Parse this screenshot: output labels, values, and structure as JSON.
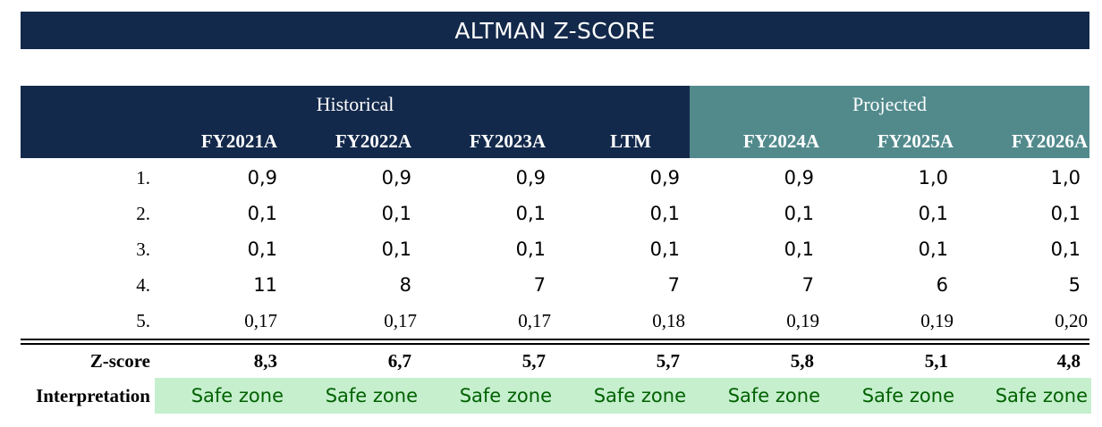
{
  "title": "ALTMAN Z-SCORE",
  "groups": {
    "historical": "Historical",
    "projected": "Projected"
  },
  "columns": [
    "FY2021A",
    "FY2022A",
    "FY2023A",
    "LTM",
    "FY2024A",
    "FY2025A",
    "FY2026A"
  ],
  "rows": [
    {
      "label": "1.",
      "values": [
        "0,9",
        "0,9",
        "0,9",
        "0,9",
        "0,9",
        "1,0",
        "1,0"
      ]
    },
    {
      "label": "2.",
      "values": [
        "0,1",
        "0,1",
        "0,1",
        "0,1",
        "0,1",
        "0,1",
        "0,1"
      ]
    },
    {
      "label": "3.",
      "values": [
        "0,1",
        "0,1",
        "0,1",
        "0,1",
        "0,1",
        "0,1",
        "0,1"
      ]
    },
    {
      "label": "4.",
      "values": [
        "11",
        "8",
        "7",
        "7",
        "7",
        "6",
        "5"
      ]
    },
    {
      "label": "5.",
      "values": [
        "0,17",
        "0,17",
        "0,17",
        "0,18",
        "0,19",
        "0,19",
        "0,20"
      ]
    }
  ],
  "zscore": {
    "label": "Z-score",
    "values": [
      "8,3",
      "6,7",
      "5,7",
      "5,7",
      "5,8",
      "5,1",
      "4,8"
    ]
  },
  "interpretation": {
    "label": "Interpretation",
    "values": [
      "Safe zone",
      "Safe zone",
      "Safe zone",
      "Safe zone",
      "Safe zone",
      "Safe zone",
      "Safe zone"
    ]
  },
  "colors": {
    "navy": "#13294b",
    "teal": "#528a8c",
    "safe_bg": "#c6efce",
    "safe_text": "#006100"
  }
}
